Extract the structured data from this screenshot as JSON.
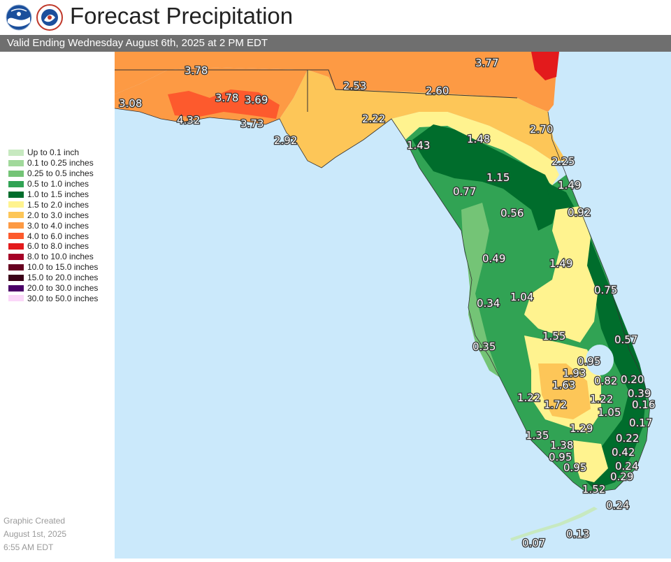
{
  "header": {
    "title": "Forecast Precipitation",
    "subtitle": "Valid Ending Wednesday August 6th, 2025 at 2 PM EDT",
    "logos": [
      "noaa-logo",
      "national-weather-service-logo"
    ]
  },
  "legend": [
    {
      "label": "Up to 0.1 inch",
      "color": "#c7e9c0"
    },
    {
      "label": "0.1 to 0.25 inches",
      "color": "#a1d99b"
    },
    {
      "label": "0.25 to 0.5 inches",
      "color": "#74c476"
    },
    {
      "label": "0.5 to 1.0 inches",
      "color": "#31a354"
    },
    {
      "label": "1.0 to 1.5 inches",
      "color": "#006d2c"
    },
    {
      "label": "1.5 to 2.0 inches",
      "color": "#fff38f"
    },
    {
      "label": "2.0 to 3.0 inches",
      "color": "#fdc658"
    },
    {
      "label": "3.0 to 4.0 inches",
      "color": "#fd9a44"
    },
    {
      "label": "4.0 to 6.0 inches",
      "color": "#fd5a2d"
    },
    {
      "label": "6.0 to 8.0 inches",
      "color": "#e31a1c"
    },
    {
      "label": "8.0 to 10.0 inches",
      "color": "#a50026"
    },
    {
      "label": "10.0 to 15.0 inches",
      "color": "#670020"
    },
    {
      "label": "15.0 to 20.0 inches",
      "color": "#3b0218"
    },
    {
      "label": "20.0 to 30.0 inches",
      "color": "#4b0068"
    },
    {
      "label": "30.0 to 50.0 inches",
      "color": "#fbd7f9"
    }
  ],
  "credit": {
    "line1": "Graphic Created",
    "line2": "August 1st, 2025",
    "line3": "6:55 AM EDT"
  },
  "map": {
    "water_color": "#cbe9fb",
    "values": [
      "3.78",
      "3.77",
      "3.08",
      "3.78",
      "3.69",
      "4.32",
      "3.73",
      "2.53",
      "2.60",
      "2.22",
      "2.92",
      "2.70",
      "1.43",
      "1.48",
      "2.25",
      "1.15",
      "1.49",
      "0.77",
      "0.56",
      "0.92",
      "0.49",
      "1.49",
      "0.75",
      "0.34",
      "1.04",
      "1.55",
      "0.57",
      "0.35",
      "0.95",
      "1.93",
      "0.82",
      "0.20",
      "1.63",
      "0.39",
      "1.22",
      "1.72",
      "1.22",
      "0.16",
      "1.05",
      "0.17",
      "1.29",
      "1.35",
      "0.22",
      "1.38",
      "0.42",
      "0.95",
      "0.95",
      "0.24",
      "0.29",
      "1.52",
      "0.24",
      "0.13",
      "0.07"
    ]
  }
}
